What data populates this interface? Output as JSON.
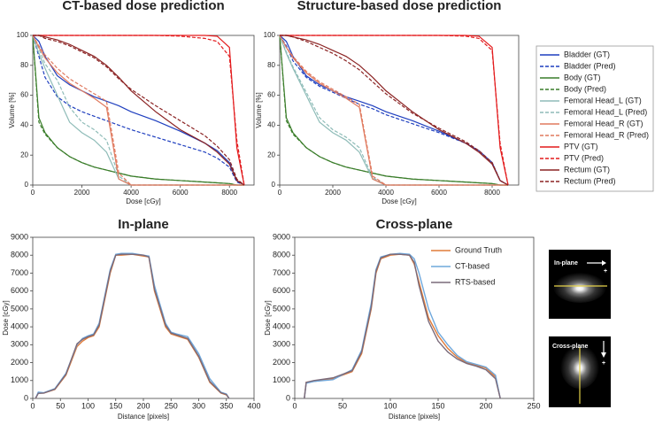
{
  "chart_data": [
    {
      "type": "line",
      "title": "CT-based dose prediction",
      "x_label": "Dose [cGy]",
      "y_label": "Volume [%]",
      "x": [
        0,
        250,
        500,
        1000,
        1500,
        2000,
        2500,
        3000,
        3500,
        4000,
        5000,
        6000,
        7000,
        7500,
        8000,
        8300,
        8600
      ],
      "xlim": [
        0,
        9000
      ],
      "ylim": [
        0,
        100
      ],
      "xticks": [
        0,
        2000,
        4000,
        6000,
        8000
      ],
      "yticks": [
        0,
        20,
        40,
        60,
        80,
        100
      ],
      "series": [
        {
          "color": "#1f3fbf",
          "style": "solid",
          "values": [
            100,
            96,
            86,
            73,
            67,
            63,
            59,
            56,
            53,
            49,
            43,
            36,
            28,
            23,
            15,
            3,
            0
          ]
        },
        {
          "color": "#1f3fbf",
          "style": "dashed",
          "values": [
            100,
            86,
            72,
            59,
            53,
            49,
            46,
            43,
            40,
            37,
            32,
            27,
            22,
            18,
            12,
            2,
            0
          ]
        },
        {
          "color": "#3a7d2a",
          "style": "solid",
          "values": [
            100,
            45,
            35,
            25,
            19,
            15,
            12,
            10,
            8,
            6,
            4,
            3,
            2,
            1.5,
            1,
            0,
            0
          ]
        },
        {
          "color": "#3a7d2a",
          "style": "dashed",
          "values": [
            100,
            42,
            34,
            25,
            19,
            15,
            12,
            10,
            8,
            6,
            4,
            3,
            2,
            1.5,
            1,
            0,
            0
          ]
        },
        {
          "color": "#8fbcb8",
          "style": "solid",
          "values": [
            100,
            88,
            78,
            60,
            42,
            35,
            30,
            22,
            4,
            0,
            0,
            0,
            0,
            0,
            0,
            0,
            0
          ]
        },
        {
          "color": "#8fbcb8",
          "style": "dashed",
          "values": [
            100,
            91,
            81,
            70,
            52,
            42,
            37,
            30,
            6,
            0,
            0,
            0,
            0,
            0,
            0,
            0,
            0
          ]
        },
        {
          "color": "#e07a5f",
          "style": "solid",
          "values": [
            100,
            92,
            85,
            75,
            68,
            63,
            58,
            52,
            4,
            0,
            0,
            0,
            0,
            0,
            0,
            0,
            0
          ]
        },
        {
          "color": "#e07a5f",
          "style": "dashed",
          "values": [
            100,
            93,
            87,
            78,
            71,
            66,
            61,
            56,
            8,
            0,
            0,
            0,
            0,
            0,
            0,
            0,
            0
          ]
        },
        {
          "color": "#e31a1c",
          "style": "solid",
          "values": [
            100,
            100,
            100,
            100,
            100,
            100,
            100,
            100,
            100,
            100,
            100,
            100,
            100,
            99.5,
            92,
            25,
            0
          ]
        },
        {
          "color": "#e31a1c",
          "style": "dashed",
          "values": [
            100,
            100,
            100,
            100,
            100,
            100,
            100,
            100,
            100,
            100,
            100,
            99.5,
            98,
            96,
            86,
            30,
            0
          ]
        },
        {
          "color": "#8b2323",
          "style": "solid",
          "values": [
            100,
            100,
            99,
            97,
            94,
            90,
            86,
            80,
            72,
            63,
            49,
            37,
            28,
            22,
            14,
            3,
            0
          ]
        },
        {
          "color": "#8b2323",
          "style": "dashed",
          "values": [
            100,
            100,
            98,
            96,
            93,
            89,
            85,
            79,
            71,
            64,
            53,
            43,
            33,
            26,
            17,
            4,
            0
          ]
        }
      ]
    },
    {
      "type": "line",
      "title": "Structure-based dose prediction",
      "x_label": "Dose [cGy]",
      "y_label": "Volume [%]",
      "legend": "right-outside",
      "x": [
        0,
        250,
        500,
        1000,
        1500,
        2000,
        2500,
        3000,
        3500,
        4000,
        5000,
        6000,
        7000,
        7500,
        8000,
        8300,
        8600
      ],
      "xlim": [
        0,
        9000
      ],
      "ylim": [
        0,
        100
      ],
      "xticks": [
        0,
        2000,
        4000,
        6000,
        8000
      ],
      "yticks": [
        0,
        20,
        40,
        60,
        80,
        100
      ],
      "series": [
        {
          "name": "Bladder (GT)",
          "color": "#1f3fbf",
          "style": "solid",
          "values": [
            100,
            96,
            86,
            73,
            67,
            63,
            59,
            56,
            53,
            49,
            43,
            36,
            28,
            23,
            15,
            3,
            0
          ]
        },
        {
          "name": "Bladder (Pred)",
          "color": "#1f3fbf",
          "style": "dashed",
          "values": [
            100,
            93,
            83,
            72,
            66,
            62,
            58,
            54,
            51,
            47,
            41,
            35,
            28,
            23,
            15,
            3,
            0
          ]
        },
        {
          "name": "Body (GT)",
          "color": "#3a7d2a",
          "style": "solid",
          "values": [
            100,
            45,
            35,
            25,
            19,
            15,
            12,
            10,
            8,
            6,
            4,
            3,
            2,
            1.5,
            1,
            0,
            0
          ]
        },
        {
          "name": "Body (Pred)",
          "color": "#3a7d2a",
          "style": "dashed",
          "values": [
            100,
            43,
            34,
            25,
            19,
            15,
            12,
            10,
            8,
            6,
            4,
            3,
            2,
            1.5,
            1,
            0,
            0
          ]
        },
        {
          "name": "Femoral Head_L (GT)",
          "color": "#8fbcb8",
          "style": "solid",
          "values": [
            100,
            88,
            78,
            60,
            42,
            35,
            30,
            22,
            4,
            0,
            0,
            0,
            0,
            0,
            0,
            0,
            0
          ]
        },
        {
          "name": "Femoral Head_L (Pred)",
          "color": "#8fbcb8",
          "style": "dashed",
          "values": [
            100,
            89,
            79,
            62,
            45,
            37,
            32,
            25,
            5,
            0,
            0,
            0,
            0,
            0,
            0,
            0,
            0
          ]
        },
        {
          "name": "Femoral Head_R (GT)",
          "color": "#e07a5f",
          "style": "solid",
          "values": [
            100,
            92,
            85,
            75,
            68,
            63,
            58,
            52,
            4,
            0,
            0,
            0,
            0,
            0,
            0,
            0,
            0
          ]
        },
        {
          "name": "Femoral Head_R (Pred)",
          "color": "#e07a5f",
          "style": "dashed",
          "values": [
            100,
            92,
            86,
            76,
            69,
            64,
            59,
            54,
            6,
            0,
            0,
            0,
            0,
            0,
            0,
            0,
            0
          ]
        },
        {
          "name": "PTV (GT)",
          "color": "#e31a1c",
          "style": "solid",
          "values": [
            100,
            100,
            100,
            100,
            100,
            100,
            100,
            100,
            100,
            100,
            100,
            100,
            100,
            99.5,
            92,
            25,
            0
          ]
        },
        {
          "name": "PTV (Pred)",
          "color": "#e31a1c",
          "style": "dashed",
          "values": [
            100,
            100,
            100,
            100,
            100,
            100,
            100,
            100,
            100,
            100,
            100,
            100,
            99.5,
            98,
            90,
            28,
            0
          ]
        },
        {
          "name": "Rectum (GT)",
          "color": "#8b2323",
          "style": "solid",
          "values": [
            100,
            100,
            99,
            97,
            94,
            90,
            86,
            80,
            72,
            63,
            49,
            37,
            28,
            22,
            14,
            3,
            0
          ]
        },
        {
          "name": "Rectum (Pred)",
          "color": "#8b2323",
          "style": "dashed",
          "values": [
            100,
            100,
            99,
            96,
            92,
            88,
            83,
            77,
            69,
            61,
            48,
            38,
            29,
            23,
            15,
            3,
            0
          ]
        }
      ]
    },
    {
      "type": "line",
      "title": "In-plane",
      "x_label": "Distance [pixels]",
      "y_label": "Dose [cGy]",
      "x": [
        5,
        10,
        20,
        40,
        60,
        80,
        90,
        100,
        110,
        120,
        140,
        150,
        160,
        180,
        200,
        210,
        220,
        240,
        250,
        260,
        280,
        300,
        320,
        340,
        350,
        355
      ],
      "xlim": [
        0,
        400
      ],
      "ylim": [
        0,
        9000
      ],
      "xticks": [
        0,
        50,
        100,
        150,
        200,
        250,
        300,
        350,
        400
      ],
      "yticks": [
        0,
        1000,
        2000,
        3000,
        4000,
        5000,
        6000,
        7000,
        8000,
        9000
      ],
      "series": [
        {
          "color": "#e07b39",
          "style": "solid",
          "values": [
            0,
            300,
            300,
            500,
            1300,
            2900,
            3200,
            3400,
            3500,
            4000,
            7000,
            8000,
            8000,
            8050,
            7950,
            7900,
            6000,
            4000,
            3600,
            3500,
            3300,
            2300,
            900,
            300,
            200,
            0
          ]
        },
        {
          "color": "#6fa8dc",
          "style": "solid",
          "values": [
            0,
            350,
            320,
            550,
            1400,
            3000,
            3350,
            3500,
            3600,
            4200,
            7200,
            8050,
            8100,
            8100,
            8000,
            7950,
            6300,
            4200,
            3700,
            3600,
            3450,
            2500,
            1100,
            350,
            250,
            0
          ]
        },
        {
          "color": "#7a6a7a",
          "style": "solid",
          "values": [
            0,
            280,
            300,
            520,
            1350,
            3050,
            3300,
            3450,
            3550,
            4100,
            7100,
            8000,
            8050,
            8050,
            8000,
            7900,
            6100,
            4100,
            3650,
            3550,
            3350,
            2350,
            950,
            320,
            220,
            0
          ]
        }
      ]
    },
    {
      "type": "line",
      "title": "Cross-plane",
      "x_label": "Distance [pixels]",
      "y_label": "Dose [cGy]",
      "legend": "top-right",
      "x": [
        10,
        12,
        20,
        40,
        60,
        70,
        80,
        85,
        90,
        100,
        110,
        120,
        125,
        130,
        140,
        150,
        160,
        170,
        180,
        190,
        200,
        210,
        215
      ],
      "xlim": [
        0,
        250
      ],
      "ylim": [
        0,
        9000
      ],
      "xticks": [
        0,
        50,
        100,
        150,
        200,
        250
      ],
      "yticks": [
        0,
        1000,
        2000,
        3000,
        4000,
        5000,
        6000,
        7000,
        8000,
        9000
      ],
      "series": [
        {
          "name": "Ground Truth",
          "color": "#e07b39",
          "style": "solid",
          "values": [
            0,
            900,
            950,
            1100,
            1500,
            2500,
            5000,
            7000,
            7800,
            8000,
            8050,
            8000,
            7500,
            6500,
            4500,
            3500,
            2800,
            2300,
            2000,
            1850,
            1700,
            1200,
            0
          ]
        },
        {
          "name": "CT-based",
          "color": "#6fa8dc",
          "style": "solid",
          "values": [
            0,
            850,
            950,
            1050,
            1600,
            2700,
            5300,
            7200,
            7900,
            8050,
            8100,
            8050,
            7800,
            7000,
            5000,
            3700,
            3000,
            2400,
            2050,
            1900,
            1750,
            1300,
            0
          ]
        },
        {
          "name": "RTS-based",
          "color": "#7a6a7a",
          "style": "solid",
          "values": [
            0,
            900,
            1000,
            1150,
            1550,
            2600,
            5100,
            7100,
            7850,
            8050,
            8050,
            8000,
            7600,
            6300,
            4300,
            3200,
            2600,
            2200,
            1950,
            1800,
            1600,
            1100,
            0
          ]
        }
      ]
    }
  ],
  "insets": [
    {
      "label": "In-plane",
      "marker": "+"
    },
    {
      "label": "Cross-plane",
      "marker": "+"
    }
  ]
}
